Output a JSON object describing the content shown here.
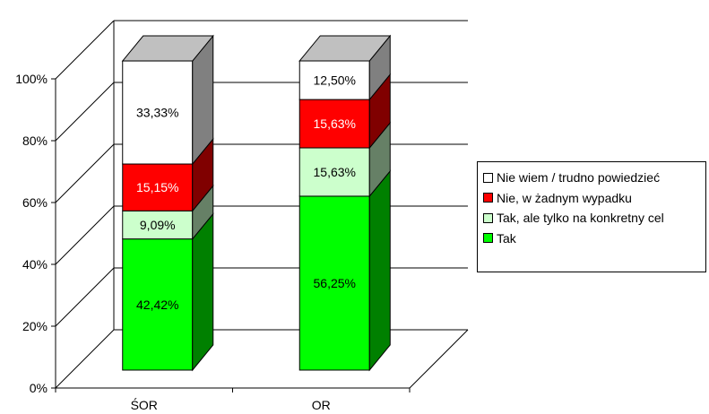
{
  "chart_data": {
    "type": "bar",
    "stacked": true,
    "three_d": true,
    "categories": [
      "ŚOR",
      "OR"
    ],
    "y_ticks": [
      "0%",
      "20%",
      "40%",
      "60%",
      "80%",
      "100%"
    ],
    "ylim": [
      0,
      100
    ],
    "grid": true,
    "legend_position": "right",
    "series": [
      {
        "name": "Tak",
        "values": [
          42.42,
          56.25
        ],
        "labels": [
          "42,42%",
          "56,25%"
        ],
        "color": "#00ff00"
      },
      {
        "name": "Tak, ale tylko na konkretny cel",
        "values": [
          9.09,
          15.63
        ],
        "labels": [
          "9,09%",
          "15,63%"
        ],
        "color": "#ccffcc"
      },
      {
        "name": "Nie, w żadnym wypadku",
        "values": [
          15.15,
          15.63
        ],
        "labels": [
          "15,15%",
          "15,63%"
        ],
        "color": "#ff0000"
      },
      {
        "name": "Nie wiem / trudno powiedzieć",
        "values": [
          33.33,
          12.5
        ],
        "labels": [
          "33,33%",
          "12,50%"
        ],
        "color": "#ffffff"
      }
    ]
  }
}
